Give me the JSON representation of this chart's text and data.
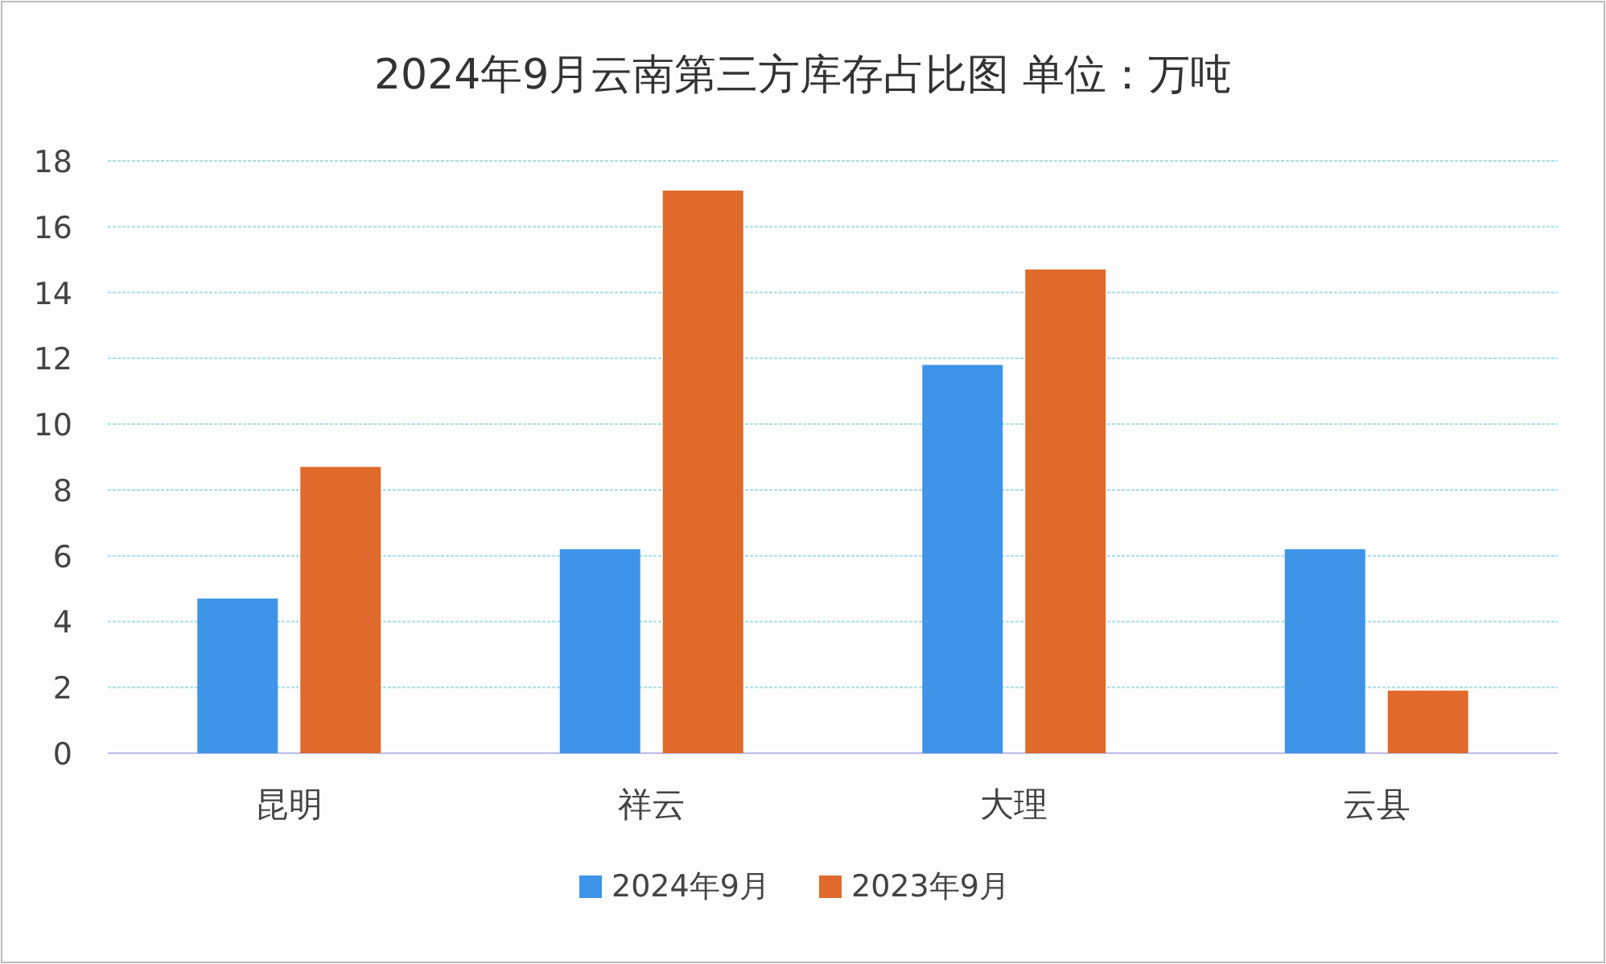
{
  "chart_data": {
    "type": "bar",
    "title": "2024年9月云南第三方库存占比图  单位：万吨",
    "categories": [
      "昆明",
      "祥云",
      "大理",
      "云县"
    ],
    "series": [
      {
        "name": "2024年9月",
        "color": "#3d94e8",
        "values": [
          4.7,
          6.2,
          11.8,
          6.2
        ]
      },
      {
        "name": "2023年9月",
        "color": "#e06a2c",
        "values": [
          8.7,
          17.1,
          14.7,
          1.9
        ]
      }
    ],
    "ylim": [
      0,
      18
    ],
    "yticks": [
      0,
      2,
      4,
      6,
      8,
      10,
      12,
      14,
      16,
      18
    ],
    "grid": "y",
    "legend": "bottom"
  }
}
